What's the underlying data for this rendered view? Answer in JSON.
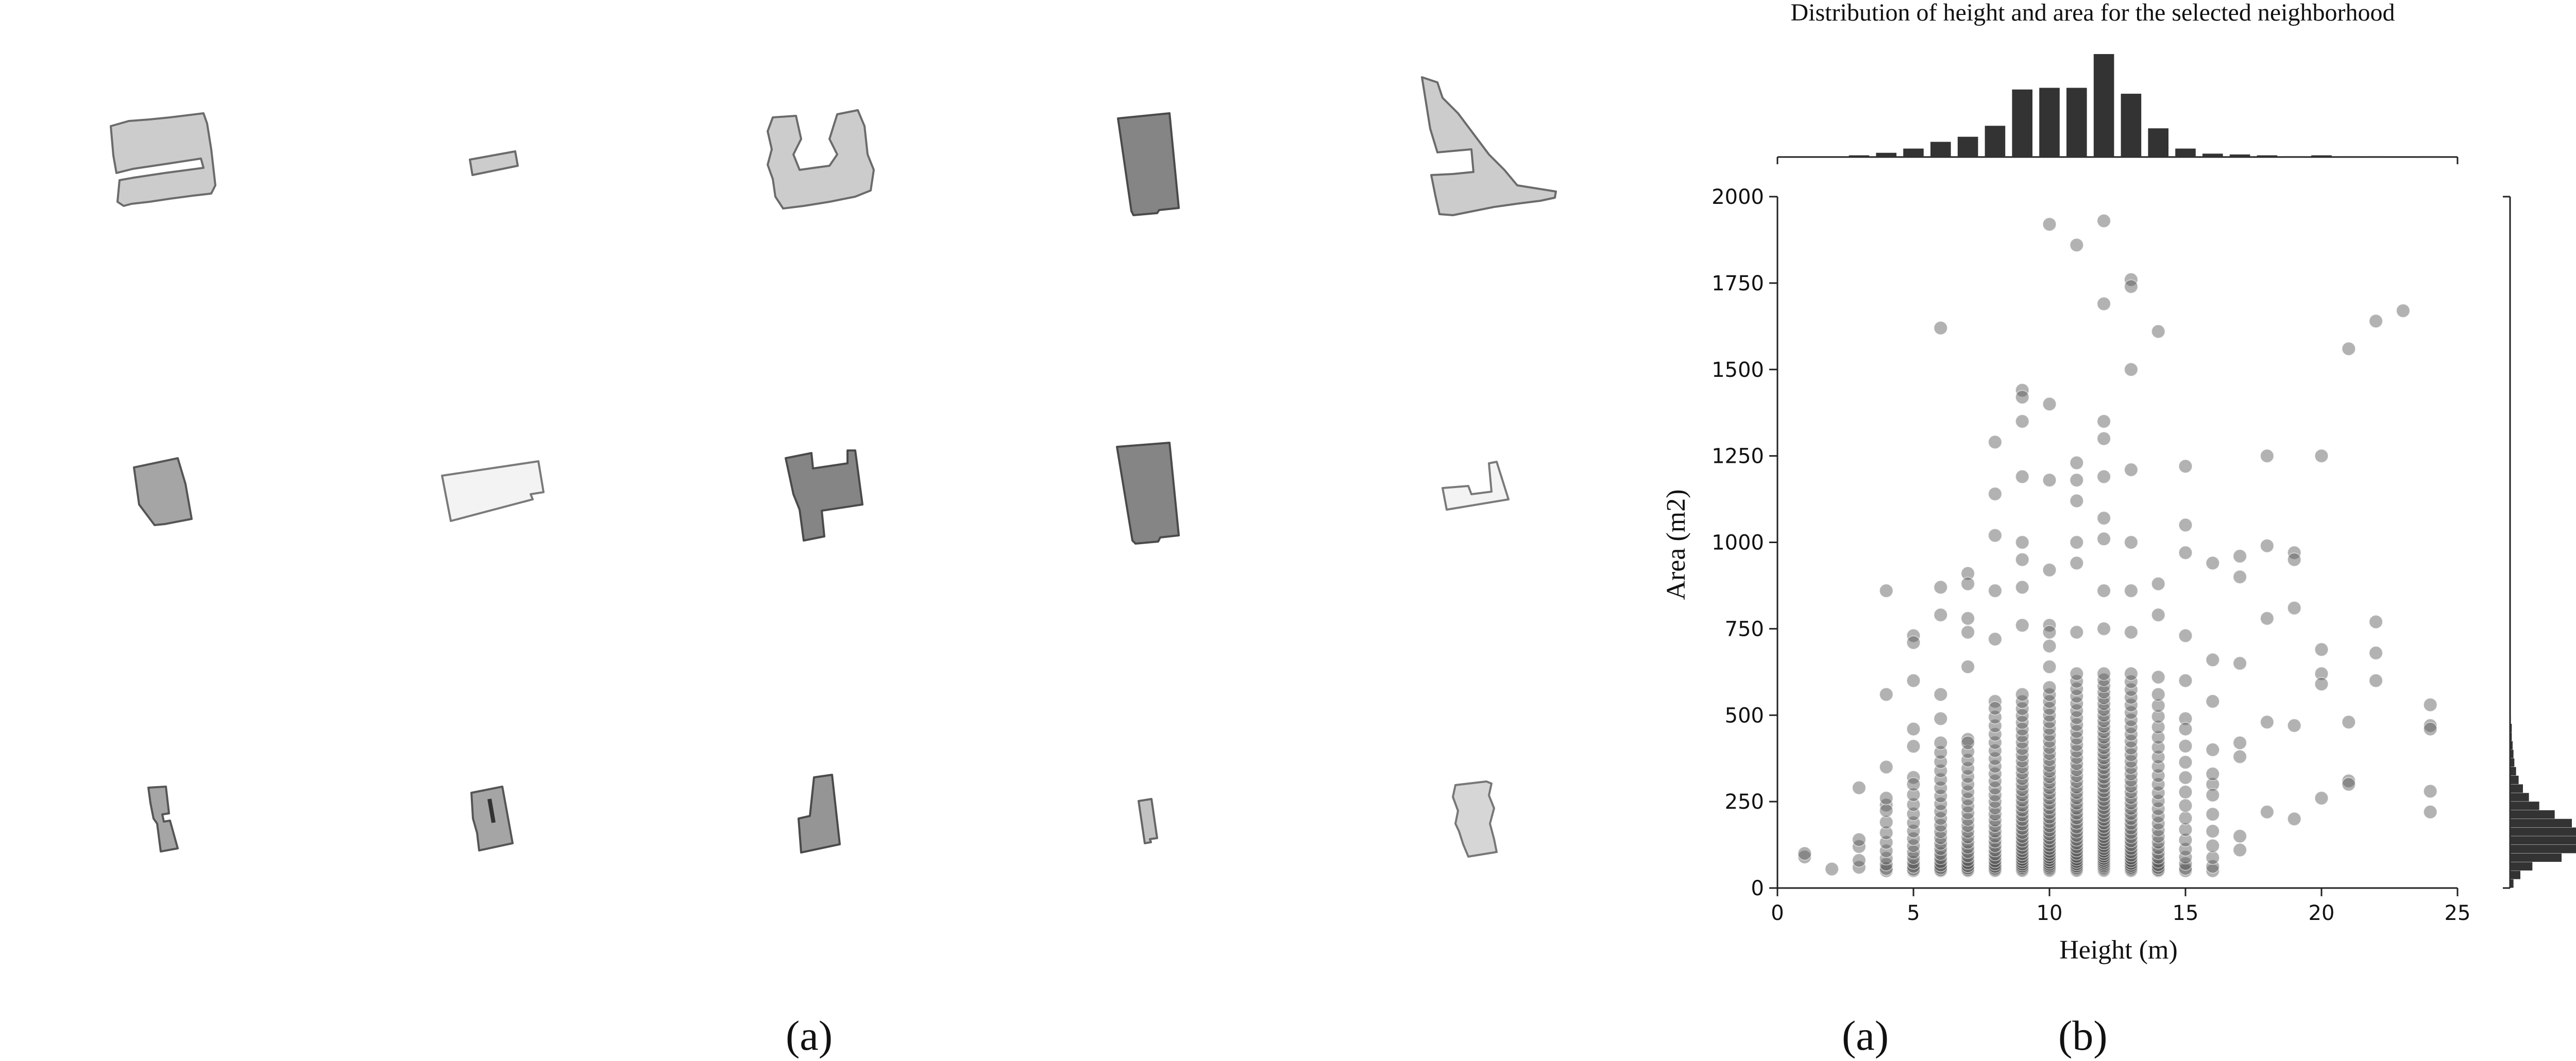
{
  "captions": {
    "left": "(a)",
    "middle": "(a)",
    "right": "(b)"
  },
  "buildings": {
    "row1": [
      {
        "name": "building-1-1",
        "fill": "#cccccc",
        "stroke": "#6b6b6b"
      },
      {
        "name": "building-1-2",
        "fill": "#cccccc",
        "stroke": "#6b6b6b"
      },
      {
        "name": "building-1-3",
        "fill": "#cccccc",
        "stroke": "#6b6b6b"
      },
      {
        "name": "building-1-4",
        "fill": "#858585",
        "stroke": "#4a4a4a"
      },
      {
        "name": "building-1-5",
        "fill": "#cccccc",
        "stroke": "#6b6b6b"
      }
    ],
    "row2": [
      {
        "name": "building-2-1",
        "fill": "#a5a5a5",
        "stroke": "#555555"
      },
      {
        "name": "building-2-2",
        "fill": "#f3f3f3",
        "stroke": "#7a7a7a"
      },
      {
        "name": "building-2-3",
        "fill": "#858585",
        "stroke": "#4a4a4a"
      },
      {
        "name": "building-2-4",
        "fill": "#858585",
        "stroke": "#4a4a4a"
      },
      {
        "name": "building-2-5",
        "fill": "#f3f3f3",
        "stroke": "#7a7a7a"
      }
    ],
    "row3": [
      {
        "name": "building-3-1",
        "fill": "#a5a5a5",
        "stroke": "#555555"
      },
      {
        "name": "building-3-2",
        "fill": "#a5a5a5",
        "stroke": "#555555"
      },
      {
        "name": "building-3-3",
        "fill": "#959595",
        "stroke": "#4a4a4a"
      },
      {
        "name": "building-3-4",
        "fill": "#c2c2c2",
        "stroke": "#666666"
      },
      {
        "name": "building-3-5",
        "fill": "#d6d6d6",
        "stroke": "#777777"
      }
    ]
  },
  "chart_data": {
    "type": "scatter",
    "title": "Distribution of height and area for the selected neighborhood",
    "xlabel": "Height (m)",
    "ylabel": "Area (m2)",
    "xlim": [
      0,
      25
    ],
    "ylim": [
      0,
      2000
    ],
    "xticks": [
      0,
      5,
      10,
      15,
      20,
      25
    ],
    "yticks": [
      0,
      250,
      500,
      750,
      1000,
      1250,
      1500,
      1750,
      2000
    ],
    "grid": false,
    "marker_color": "#555555",
    "bar_color": "#333333",
    "marginal_x": {
      "type": "bar",
      "bin_centers": [
        3,
        4,
        5,
        6,
        7,
        8,
        9,
        10,
        11,
        12,
        13,
        14,
        15,
        16,
        17,
        18,
        19,
        20,
        21,
        22,
        24
      ],
      "counts": [
        2,
        5,
        10,
        18,
        24,
        37,
        80,
        82,
        82,
        122,
        75,
        34,
        10,
        4,
        3,
        2,
        1,
        2,
        1,
        1,
        1
      ]
    },
    "marginal_y": {
      "type": "bar",
      "bin_edges": [
        0,
        25,
        50,
        75,
        100,
        125,
        150,
        175,
        200,
        225,
        250,
        275,
        300,
        325,
        350,
        375,
        400,
        425,
        450,
        475,
        500
      ],
      "counts": [
        4,
        12,
        26,
        60,
        88,
        108,
        96,
        72,
        52,
        34,
        22,
        15,
        10,
        7,
        5,
        4,
        3,
        2,
        2,
        1
      ]
    },
    "points": [
      {
        "x": 1,
        "y": 90
      },
      {
        "x": 1,
        "y": 100
      },
      {
        "x": 2,
        "y": 55
      },
      {
        "x": 3,
        "y": 60
      },
      {
        "x": 3,
        "y": 80
      },
      {
        "x": 3,
        "y": 120
      },
      {
        "x": 3,
        "y": 140
      },
      {
        "x": 3,
        "y": 290
      },
      {
        "x": 4,
        "y": 560
      },
      {
        "x": 4,
        "y": 860
      },
      {
        "x": 4,
        "y": 350
      },
      {
        "x": 4,
        "y": 240
      },
      {
        "x": 5,
        "y": 730
      },
      {
        "x": 5,
        "y": 710
      },
      {
        "x": 5,
        "y": 600
      },
      {
        "x": 5,
        "y": 460
      },
      {
        "x": 5,
        "y": 410
      },
      {
        "x": 5,
        "y": 320
      },
      {
        "x": 6,
        "y": 1620
      },
      {
        "x": 6,
        "y": 870
      },
      {
        "x": 6,
        "y": 790
      },
      {
        "x": 6,
        "y": 560
      },
      {
        "x": 6,
        "y": 490
      },
      {
        "x": 7,
        "y": 910
      },
      {
        "x": 7,
        "y": 880
      },
      {
        "x": 7,
        "y": 780
      },
      {
        "x": 7,
        "y": 740
      },
      {
        "x": 7,
        "y": 640
      },
      {
        "x": 7,
        "y": 430
      },
      {
        "x": 8,
        "y": 1290
      },
      {
        "x": 8,
        "y": 1140
      },
      {
        "x": 8,
        "y": 1020
      },
      {
        "x": 8,
        "y": 860
      },
      {
        "x": 8,
        "y": 720
      },
      {
        "x": 8,
        "y": 540
      },
      {
        "x": 9,
        "y": 1440
      },
      {
        "x": 9,
        "y": 1420
      },
      {
        "x": 9,
        "y": 1350
      },
      {
        "x": 9,
        "y": 1190
      },
      {
        "x": 9,
        "y": 1000
      },
      {
        "x": 9,
        "y": 950
      },
      {
        "x": 9,
        "y": 870
      },
      {
        "x": 9,
        "y": 760
      },
      {
        "x": 10,
        "y": 1920
      },
      {
        "x": 10,
        "y": 1400
      },
      {
        "x": 10,
        "y": 1180
      },
      {
        "x": 10,
        "y": 920
      },
      {
        "x": 10,
        "y": 760
      },
      {
        "x": 10,
        "y": 740
      },
      {
        "x": 10,
        "y": 700
      },
      {
        "x": 10,
        "y": 640
      },
      {
        "x": 11,
        "y": 1860
      },
      {
        "x": 11,
        "y": 1230
      },
      {
        "x": 11,
        "y": 1180
      },
      {
        "x": 11,
        "y": 1120
      },
      {
        "x": 11,
        "y": 1000
      },
      {
        "x": 11,
        "y": 940
      },
      {
        "x": 11,
        "y": 740
      },
      {
        "x": 12,
        "y": 1930
      },
      {
        "x": 12,
        "y": 1690
      },
      {
        "x": 12,
        "y": 1350
      },
      {
        "x": 12,
        "y": 1300
      },
      {
        "x": 12,
        "y": 1190
      },
      {
        "x": 12,
        "y": 1070
      },
      {
        "x": 12,
        "y": 1010
      },
      {
        "x": 12,
        "y": 860
      },
      {
        "x": 12,
        "y": 750
      },
      {
        "x": 13,
        "y": 1760
      },
      {
        "x": 13,
        "y": 1740
      },
      {
        "x": 13,
        "y": 1500
      },
      {
        "x": 13,
        "y": 1210
      },
      {
        "x": 13,
        "y": 1000
      },
      {
        "x": 13,
        "y": 860
      },
      {
        "x": 13,
        "y": 740
      },
      {
        "x": 14,
        "y": 1610
      },
      {
        "x": 14,
        "y": 880
      },
      {
        "x": 14,
        "y": 790
      },
      {
        "x": 14,
        "y": 610
      },
      {
        "x": 15,
        "y": 1220
      },
      {
        "x": 15,
        "y": 1050
      },
      {
        "x": 15,
        "y": 970
      },
      {
        "x": 15,
        "y": 730
      },
      {
        "x": 15,
        "y": 600
      },
      {
        "x": 15,
        "y": 490
      },
      {
        "x": 16,
        "y": 940
      },
      {
        "x": 16,
        "y": 660
      },
      {
        "x": 16,
        "y": 540
      },
      {
        "x": 16,
        "y": 400
      },
      {
        "x": 16,
        "y": 300
      },
      {
        "x": 17,
        "y": 960
      },
      {
        "x": 17,
        "y": 900
      },
      {
        "x": 17,
        "y": 650
      },
      {
        "x": 17,
        "y": 420
      },
      {
        "x": 17,
        "y": 380
      },
      {
        "x": 17,
        "y": 150
      },
      {
        "x": 17,
        "y": 110
      },
      {
        "x": 18,
        "y": 1250
      },
      {
        "x": 18,
        "y": 990
      },
      {
        "x": 18,
        "y": 780
      },
      {
        "x": 18,
        "y": 480
      },
      {
        "x": 18,
        "y": 220
      },
      {
        "x": 19,
        "y": 970
      },
      {
        "x": 19,
        "y": 950
      },
      {
        "x": 19,
        "y": 810
      },
      {
        "x": 19,
        "y": 470
      },
      {
        "x": 19,
        "y": 200
      },
      {
        "x": 20,
        "y": 1250
      },
      {
        "x": 20,
        "y": 690
      },
      {
        "x": 20,
        "y": 620
      },
      {
        "x": 20,
        "y": 590
      },
      {
        "x": 20,
        "y": 260
      },
      {
        "x": 21,
        "y": 1560
      },
      {
        "x": 21,
        "y": 480
      },
      {
        "x": 21,
        "y": 310
      },
      {
        "x": 21,
        "y": 300
      },
      {
        "x": 22,
        "y": 1640
      },
      {
        "x": 22,
        "y": 770
      },
      {
        "x": 22,
        "y": 680
      },
      {
        "x": 22,
        "y": 600
      },
      {
        "x": 23,
        "y": 1670
      },
      {
        "x": 24,
        "y": 530
      },
      {
        "x": 24,
        "y": 470
      },
      {
        "x": 24,
        "y": 460
      },
      {
        "x": 24,
        "y": 280
      },
      {
        "x": 24,
        "y": 220
      }
    ],
    "dense_columns": [
      {
        "x": 4,
        "ymax": 260,
        "n": 10
      },
      {
        "x": 5,
        "ymax": 300,
        "n": 14
      },
      {
        "x": 6,
        "ymax": 420,
        "n": 22
      },
      {
        "x": 7,
        "ymax": 420,
        "n": 24
      },
      {
        "x": 8,
        "ymax": 520,
        "n": 30
      },
      {
        "x": 9,
        "ymax": 560,
        "n": 40
      },
      {
        "x": 10,
        "ymax": 580,
        "n": 42
      },
      {
        "x": 11,
        "ymax": 620,
        "n": 42
      },
      {
        "x": 12,
        "ymax": 620,
        "n": 52
      },
      {
        "x": 13,
        "ymax": 620,
        "n": 40
      },
      {
        "x": 14,
        "ymax": 560,
        "n": 26
      },
      {
        "x": 15,
        "ymax": 460,
        "n": 14
      },
      {
        "x": 16,
        "ymax": 330,
        "n": 8
      }
    ]
  }
}
